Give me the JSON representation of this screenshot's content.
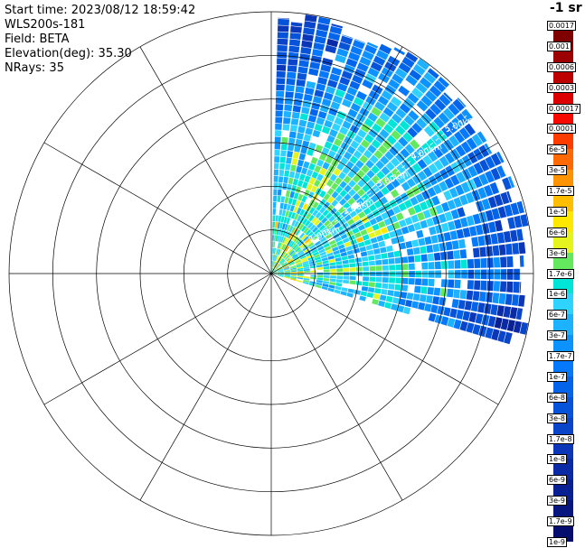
{
  "header": {
    "start_time": "Start time: 2023/08/12 18:59:42",
    "instrument": "WLS200s-181",
    "field": "Field: BETA",
    "elevation": "Elevation(deg): 35.30",
    "nrays": "NRays: 35"
  },
  "colorbar": {
    "title": "-1 sr",
    "ticks": [
      "0.0017",
      "0.001",
      "0.0006",
      "0.0003",
      "0.00017",
      "0.0001",
      "6e-5",
      "3e-5",
      "1.7e-5",
      "1e-5",
      "6e-6",
      "3e-6",
      "1.7e-6",
      "1e-6",
      "6e-7",
      "3e-7",
      "1.7e-7",
      "1e-7",
      "6e-8",
      "3e-8",
      "1.7e-8",
      "1e-8",
      "6e-9",
      "3e-9",
      "1.7e-9",
      "1e-9"
    ],
    "segment_colors": [
      "#7f0000",
      "#9d0000",
      "#bd0000",
      "#dc0000",
      "#f80900",
      "#ff3c00",
      "#ff6900",
      "#ff9300",
      "#ffbe00",
      "#ffe800",
      "#e4f41c",
      "#64e95e",
      "#00e5d8",
      "#2fd3ff",
      "#1cb2ff",
      "#0d93ff",
      "#0679fa",
      "#0364ea",
      "#0653d9",
      "#0a44c9",
      "#0b36b8",
      "#0a2aa5",
      "#082091",
      "#06167e",
      "#050e6c"
    ]
  },
  "chart_data": {
    "type": "heatmap",
    "projection": "polar-ppi",
    "title": "",
    "field": "BETA",
    "n_rays": 35,
    "sector": {
      "start_azimuth_deg": 1.5,
      "end_azimuth_deg": 107
    },
    "range": {
      "max_km": 6,
      "ring_interval_km": 1,
      "gate_km": 0.15
    },
    "range_ring_labels": [
      "1.00km",
      "2.00km",
      "3.00km",
      "4.00km",
      "5.00km"
    ],
    "ring_label_azimuth_deg": 51,
    "grid": {
      "spoke_interval_deg": 30,
      "n_rings": 6,
      "line_color": "#000000"
    },
    "value_scale": {
      "min": 1e-09,
      "max": 0.0017,
      "log": true
    },
    "log10_beta_estimates": {
      "azimuth_bin_edges_deg": [
        1.5,
        16.5,
        31.5,
        46.5,
        61.5,
        76.5,
        91.5,
        107
      ],
      "range_bin_edges_km": [
        0,
        0.75,
        1.5,
        2.25,
        3.0,
        3.75,
        4.5,
        5.25,
        6.0
      ],
      "values": [
        [
          -5.85,
          -6.0,
          -6.05,
          -6.1,
          -6.3,
          -6.8,
          -7.2,
          -7.4
        ],
        [
          -5.8,
          -5.95,
          -6.0,
          -6.05,
          -6.2,
          -6.5,
          -6.9,
          -7.1
        ],
        [
          -5.75,
          -5.9,
          -5.95,
          -6.0,
          -6.05,
          -6.2,
          -6.6,
          -6.9
        ],
        [
          -5.75,
          -5.9,
          -5.95,
          -5.95,
          -6.0,
          -6.15,
          -6.4,
          -6.7
        ],
        [
          -5.8,
          -5.9,
          -6.0,
          -6.05,
          -6.1,
          -6.3,
          -6.7,
          -7.1
        ],
        [
          -5.8,
          -5.95,
          -6.05,
          -6.1,
          -6.25,
          -6.6,
          -7.1,
          -7.5
        ],
        [
          -5.85,
          -6.0,
          -6.1,
          -6.25,
          -6.5,
          -6.9,
          -7.4,
          -7.7
        ]
      ],
      "noise_log10": 0.45
    }
  },
  "background": "#ffffff"
}
